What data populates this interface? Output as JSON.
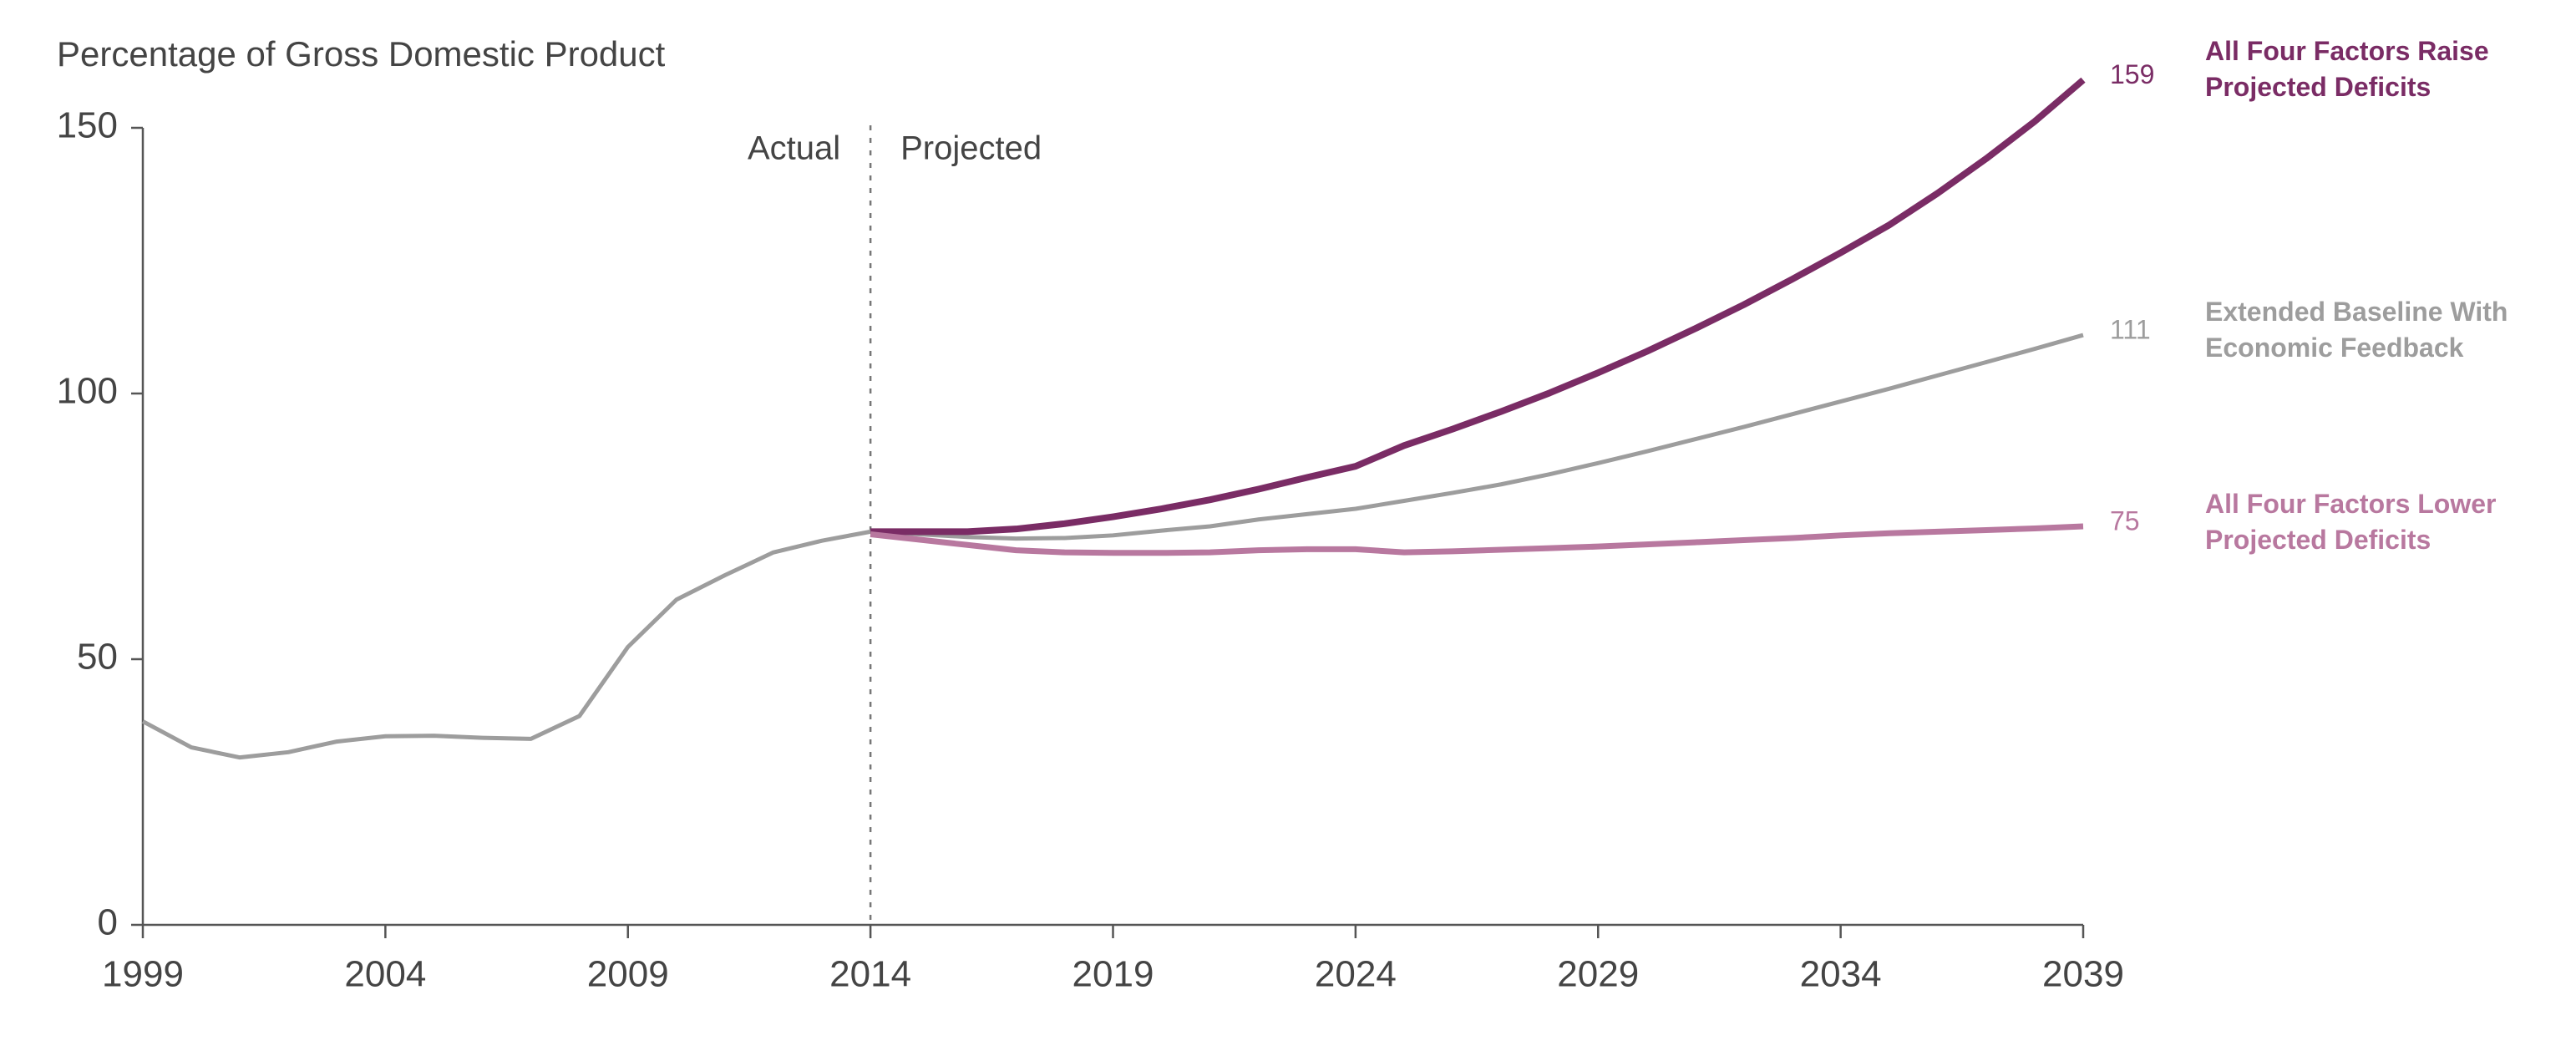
{
  "chart_data": {
    "type": "line",
    "title": "Percentage of Gross Domestic Product",
    "annotations": [
      "Actual",
      "Projected"
    ],
    "x": [
      1999,
      2000,
      2001,
      2002,
      2003,
      2004,
      2005,
      2006,
      2007,
      2008,
      2009,
      2010,
      2011,
      2012,
      2013,
      2014,
      2015,
      2016,
      2017,
      2018,
      2019,
      2020,
      2021,
      2022,
      2023,
      2024,
      2025,
      2026,
      2027,
      2028,
      2029,
      2030,
      2031,
      2032,
      2033,
      2034,
      2035,
      2036,
      2037,
      2038,
      2039
    ],
    "series": [
      {
        "name": "Extended Baseline With Economic Feedback",
        "color": "#9d9d9d",
        "values": [
          38.3,
          33.4,
          31.5,
          32.5,
          34.5,
          35.5,
          35.6,
          35.2,
          35,
          39.3,
          52.3,
          61.2,
          65.8,
          70.1,
          72.3,
          74,
          73.5,
          73,
          72.7,
          72.8,
          73.3,
          74.2,
          75,
          76.3,
          77.3,
          78.3,
          79.8,
          81.3,
          82.9,
          84.8,
          86.9,
          89.1,
          91.4,
          93.7,
          96.1,
          98.5,
          100.9,
          103.4,
          105.9,
          108.4,
          111
        ]
      },
      {
        "name": "All Four Factors Raise Projected Deficits",
        "color": "#7a2c65",
        "values": [
          null,
          null,
          null,
          null,
          null,
          null,
          null,
          null,
          null,
          null,
          null,
          null,
          null,
          null,
          null,
          74,
          74,
          74,
          74.5,
          75.5,
          76.8,
          78.3,
          80,
          82,
          84.2,
          86.3,
          90.2,
          93.3,
          96.6,
          100.1,
          103.9,
          107.9,
          112.2,
          116.7,
          121.5,
          126.5,
          131.7,
          137.7,
          144.2,
          151.2,
          159
        ]
      },
      {
        "name": "All Four Factors Lower Projected Deficits",
        "color": "#b8789f",
        "values": [
          null,
          null,
          null,
          null,
          null,
          null,
          null,
          null,
          null,
          null,
          null,
          null,
          null,
          null,
          null,
          73.5,
          72.5,
          71.5,
          70.5,
          70.1,
          70,
          70,
          70.1,
          70.5,
          70.7,
          70.7,
          70.1,
          70.3,
          70.6,
          70.9,
          71.2,
          71.6,
          72,
          72.4,
          72.8,
          73.3,
          73.7,
          74,
          74.3,
          74.6,
          75
        ]
      }
    ],
    "xlim": [
      1999,
      2039
    ],
    "xticks": [
      1999,
      2004,
      2009,
      2014,
      2019,
      2024,
      2029,
      2034,
      2039
    ],
    "ylim": [
      0,
      150
    ],
    "yticks": [
      0,
      50,
      100,
      150
    ],
    "grid": false
  }
}
